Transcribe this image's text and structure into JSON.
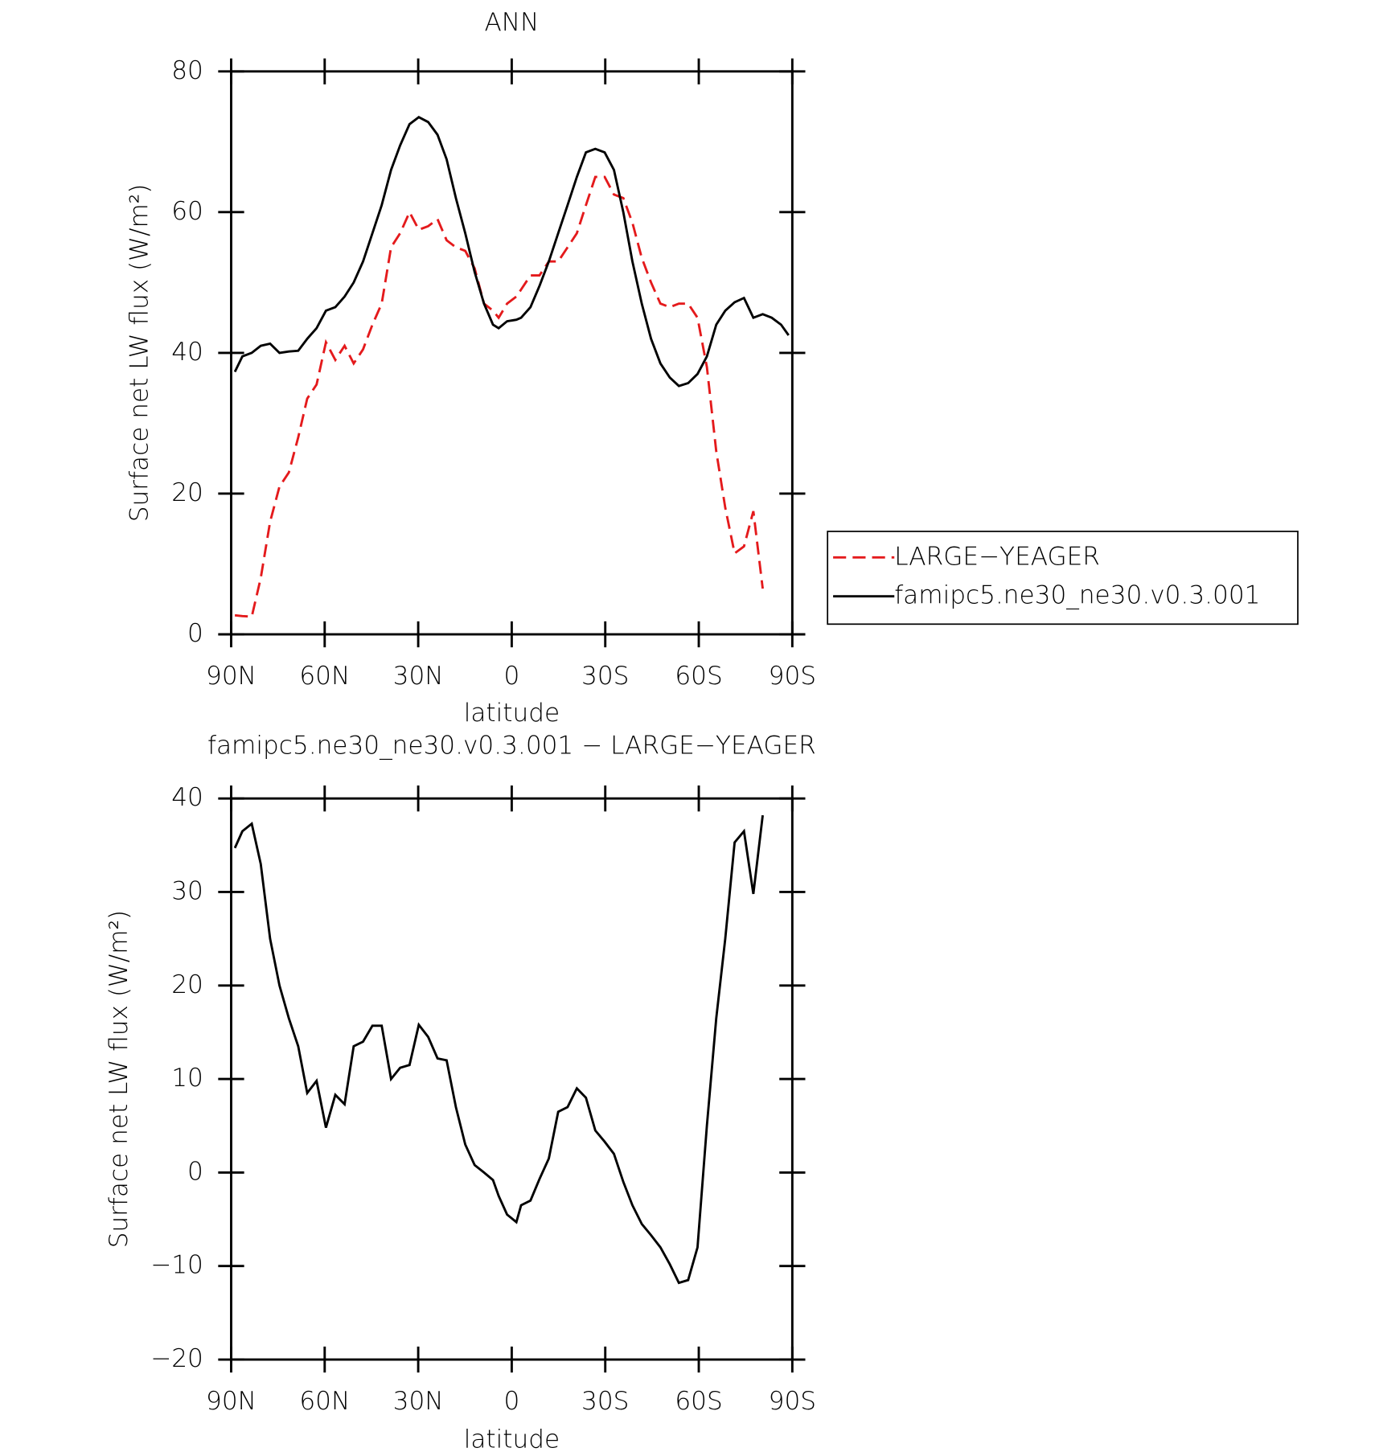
{
  "chart_data": [
    {
      "type": "line",
      "title": "ANN",
      "xlabel": "latitude",
      "ylabel": "Surface net LW flux (W/m²)",
      "x": [
        88.8,
        86.4,
        83.4,
        80.5,
        77.5,
        74.5,
        71.5,
        68.5,
        65.6,
        62.6,
        59.6,
        56.6,
        53.6,
        50.7,
        47.7,
        44.7,
        41.7,
        38.7,
        35.8,
        32.8,
        29.8,
        26.8,
        23.8,
        20.9,
        17.9,
        14.9,
        11.9,
        8.9,
        6.0,
        4.2,
        1.5,
        -1.5,
        -3.0,
        -6.0,
        -8.9,
        -11.9,
        -14.9,
        -17.9,
        -20.9,
        -23.8,
        -26.8,
        -29.8,
        -32.8,
        -35.8,
        -38.7,
        -41.7,
        -44.7,
        -47.7,
        -50.7,
        -53.6,
        -56.6,
        -59.6,
        -62.6,
        -65.6,
        -68.5,
        -71.5,
        -74.5,
        -77.5,
        -80.5,
        -83.4,
        -86.4,
        -88.8
      ],
      "series": [
        {
          "name": "LARGE−YEAGER",
          "color": "#e41a1c",
          "style": "dashed",
          "values": [
            2.7,
            2.6,
            2.5,
            8,
            16,
            21,
            23,
            28,
            33.5,
            35.5,
            41.5,
            39,
            41,
            38.5,
            40.5,
            44,
            47,
            55,
            57,
            60,
            57.5,
            58,
            59,
            56,
            55,
            54.5,
            52,
            47,
            46,
            45,
            47,
            48,
            49,
            51,
            51,
            53,
            53,
            55,
            57,
            61,
            65,
            65,
            62.5,
            62,
            58.5,
            53.5,
            50,
            47,
            46.5,
            47,
            47,
            45,
            38,
            26,
            18,
            11.5,
            12.5,
            17.5,
            6.5,
            null,
            null,
            null
          ]
        },
        {
          "name": "famipc5.ne30_ne30.v0.3.001",
          "color": "#000000",
          "style": "solid",
          "values": [
            37.3,
            39.5,
            40,
            41,
            41.3,
            40,
            40.2,
            40.3,
            42,
            43.5,
            46,
            46.5,
            48,
            50,
            53,
            57,
            61,
            66,
            69.5,
            72.5,
            73.5,
            72.8,
            71,
            67.5,
            62,
            57,
            51.5,
            47,
            44,
            43.5,
            44.5,
            44.7,
            45,
            46.5,
            49.5,
            53,
            57,
            61,
            65,
            68.5,
            69,
            68.5,
            66,
            60,
            53,
            47,
            42,
            38.5,
            36.5,
            35.3,
            35.7,
            37,
            39.5,
            44,
            46,
            47.2,
            47.8,
            45,
            45.5,
            45,
            44,
            42.5
          ]
        }
      ],
      "xlim": [
        90,
        -90
      ],
      "xticks": [
        {
          "value": 90,
          "label": "90N"
        },
        {
          "value": 60,
          "label": "60N"
        },
        {
          "value": 30,
          "label": "30N"
        },
        0,
        {
          "value": -30,
          "label": "30S"
        },
        {
          "value": -60,
          "label": "60S"
        },
        {
          "value": -90,
          "label": "90S"
        }
      ],
      "ylim": [
        0,
        80
      ],
      "yticks": [
        0,
        20,
        40,
        60,
        80
      ]
    },
    {
      "type": "line",
      "title": "famipc5.ne30_ne30.v0.3.001 − LARGE−YEAGER",
      "xlabel": "latitude",
      "ylabel": "Surface net LW flux (W/m²)",
      "x": [
        88.8,
        86.4,
        83.4,
        80.5,
        77.5,
        74.5,
        71.5,
        68.5,
        65.6,
        62.6,
        59.6,
        56.6,
        53.6,
        50.7,
        47.7,
        44.7,
        41.7,
        38.7,
        35.8,
        32.8,
        29.8,
        26.8,
        23.8,
        20.9,
        17.9,
        14.9,
        11.9,
        8.9,
        6.0,
        4.2,
        1.5,
        -1.5,
        -3.0,
        -6.0,
        -8.9,
        -11.9,
        -14.9,
        -17.9,
        -20.9,
        -23.8,
        -26.8,
        -29.8,
        -32.8,
        -35.8,
        -38.7,
        -41.7,
        -44.7,
        -47.7,
        -50.7,
        -53.6,
        -56.6,
        -59.6,
        -62.6,
        -65.6,
        -68.5,
        -71.5,
        -74.5,
        -77.5,
        -80.5,
        -83.4,
        -86.4,
        -88.8
      ],
      "color": "#000000",
      "values": [
        34.7,
        36.5,
        37.3,
        33,
        25,
        20,
        16.5,
        13.5,
        8.5,
        9.8,
        4.8,
        8.3,
        7.3,
        13.5,
        14,
        15.7,
        15.7,
        10,
        11.2,
        11.5,
        15.8,
        14.5,
        12.2,
        12,
        7,
        3,
        0.8,
        0,
        -0.8,
        -2.5,
        -4.5,
        -5.3,
        -3.5,
        -3,
        -0.7,
        1.5,
        6.5,
        7,
        9,
        8,
        4.5,
        3.3,
        2,
        -1,
        -3.5,
        -5.5,
        -6.7,
        -8,
        -9.8,
        -11.8,
        -11.5,
        -8,
        5,
        16.5,
        25,
        35.3,
        36.5,
        29.8,
        38.2,
        null,
        null,
        null
      ],
      "xlim": [
        90,
        -90
      ],
      "xticks": [
        {
          "value": 90,
          "label": "90N"
        },
        {
          "value": 60,
          "label": "60N"
        },
        {
          "value": 30,
          "label": "30N"
        },
        0,
        {
          "value": -30,
          "label": "30S"
        },
        {
          "value": -60,
          "label": "60S"
        },
        {
          "value": -90,
          "label": "90S"
        }
      ],
      "ylim": [
        -20,
        40
      ],
      "yticks": [
        {
          "value": -20,
          "label": "−20"
        },
        {
          "value": -10,
          "label": "−10"
        },
        0,
        10,
        20,
        30,
        40
      ]
    }
  ]
}
